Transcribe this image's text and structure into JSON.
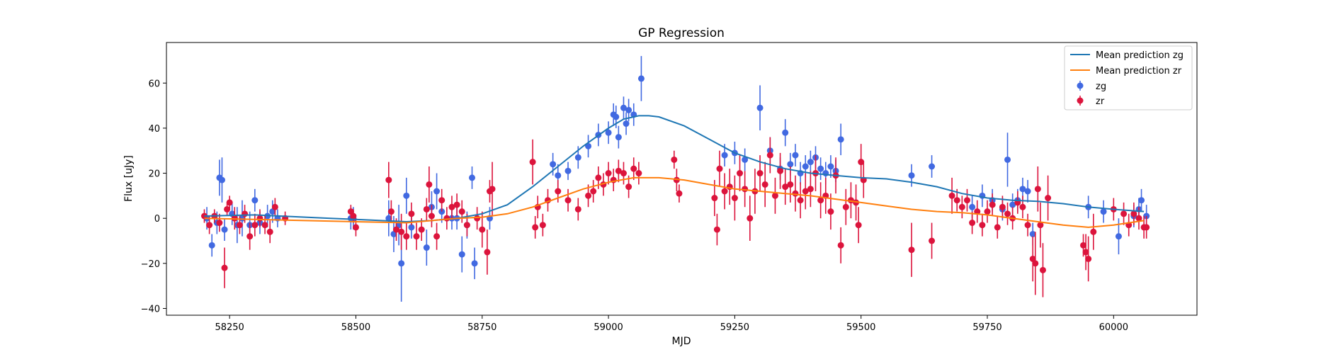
{
  "chart_data": {
    "type": "scatter",
    "title": "GP Regression",
    "xlabel": "MJD",
    "ylabel": "Flux [uJy]",
    "xlim": [
      58125,
      60165
    ],
    "ylim": [
      -43,
      78
    ],
    "x_ticks": [
      58250,
      58500,
      58750,
      59000,
      59250,
      59500,
      59750,
      60000
    ],
    "y_ticks": [
      -40,
      -20,
      0,
      20,
      40,
      60
    ],
    "grid": false,
    "legend_position": "top-right",
    "legend": [
      "Mean prediction zg",
      "Mean prediction zr",
      "zg",
      "zr"
    ],
    "series": [
      {
        "name": "Mean prediction zg",
        "kind": "line",
        "color": "#1f77b4",
        "x": [
          58200,
          58300,
          58350,
          58400,
          58450,
          58500,
          58550,
          58600,
          58650,
          58700,
          58750,
          58800,
          58850,
          58900,
          58950,
          59000,
          59030,
          59060,
          59080,
          59100,
          59150,
          59200,
          59250,
          59300,
          59350,
          59400,
          59450,
          59500,
          59550,
          59600,
          59650,
          59700,
          59750,
          59800,
          59850,
          59900,
          59950,
          60000,
          60060
        ],
        "y": [
          1,
          1.5,
          1,
          0.5,
          0,
          -0.5,
          -1,
          -1.5,
          -1,
          0,
          2,
          6,
          14,
          23,
          32,
          40,
          44,
          45.5,
          45.5,
          45,
          41,
          35,
          29,
          25,
          22,
          20,
          19,
          18,
          17.5,
          16,
          14,
          11,
          9,
          8,
          7.5,
          6.5,
          5,
          4,
          3
        ]
      },
      {
        "name": "Mean prediction zr",
        "kind": "line",
        "color": "#ff7f0e",
        "x": [
          58200,
          58300,
          58400,
          58500,
          58600,
          58650,
          58700,
          58750,
          58800,
          58850,
          58900,
          58950,
          59000,
          59050,
          59100,
          59150,
          59200,
          59250,
          59300,
          59350,
          59400,
          59450,
          59500,
          59550,
          59600,
          59650,
          59700,
          59750,
          59800,
          59850,
          59900,
          59950,
          60000,
          60060
        ],
        "y": [
          0,
          -0.5,
          -1,
          -1.5,
          -2,
          -1,
          0,
          0.5,
          2,
          5,
          9,
          13,
          16,
          18,
          18,
          17,
          15,
          13,
          12,
          11,
          10,
          8.5,
          7,
          5.5,
          4,
          3,
          2.5,
          1.5,
          0,
          -1.5,
          -3,
          -4,
          -3,
          -1
        ]
      },
      {
        "name": "zg",
        "kind": "errorbar",
        "color": "#4169e1",
        "x": [
          58205,
          58215,
          58225,
          58230,
          58235,
          58240,
          58255,
          58265,
          58275,
          58290,
          58300,
          58310,
          58325,
          58335,
          58345,
          58490,
          58495,
          58565,
          58575,
          58585,
          58590,
          58600,
          58610,
          58640,
          58650,
          58660,
          58670,
          58690,
          58700,
          58710,
          58720,
          58730,
          58735,
          58765,
          58890,
          58900,
          58920,
          58940,
          58960,
          58980,
          59000,
          59010,
          59015,
          59020,
          59030,
          59035,
          59040,
          59050,
          59065,
          59230,
          59250,
          59270,
          59300,
          59320,
          59340,
          59350,
          59360,
          59370,
          59380,
          59390,
          59400,
          59410,
          59420,
          59430,
          59440,
          59450,
          59460,
          59600,
          59640,
          59720,
          59740,
          59760,
          59780,
          59790,
          59800,
          59810,
          59820,
          59830,
          59840,
          59950,
          59980,
          60010,
          60040,
          60050,
          60055,
          60065
        ],
        "y": [
          0,
          -12,
          -2,
          18,
          17,
          -5,
          2,
          -3,
          0,
          -3,
          8,
          -2,
          1,
          3,
          0,
          0,
          0,
          0,
          -7,
          -3,
          -20,
          10,
          -4,
          -13,
          5,
          12,
          3,
          0,
          0,
          -16,
          -3,
          18,
          -20,
          0,
          24,
          19,
          21,
          27,
          32,
          37,
          38,
          46,
          45,
          36,
          49,
          42,
          48,
          46,
          62,
          28,
          29,
          26,
          49,
          30,
          22,
          38,
          24,
          28,
          20,
          23,
          25,
          27,
          22,
          20,
          23,
          21,
          35,
          19,
          23,
          5,
          10,
          8,
          4,
          26,
          6,
          8,
          13,
          12,
          -7,
          5,
          3,
          -8,
          1,
          4,
          8,
          1
        ],
        "err": [
          5,
          5,
          5,
          8,
          10,
          5,
          5,
          8,
          8,
          6,
          5,
          5,
          5,
          5,
          4,
          5,
          5,
          8,
          8,
          9,
          17,
          8,
          5,
          8,
          7,
          8,
          5,
          5,
          5,
          8,
          6,
          5,
          7,
          5,
          5,
          5,
          4,
          5,
          5,
          5,
          5,
          5,
          5,
          5,
          5,
          5,
          5,
          5,
          10,
          5,
          5,
          5,
          10,
          6,
          5,
          6,
          5,
          5,
          5,
          5,
          5,
          5,
          5,
          5,
          5,
          5,
          7,
          5,
          5,
          5,
          5,
          5,
          5,
          12,
          5,
          5,
          5,
          5,
          5,
          5,
          5,
          8,
          5,
          5,
          5,
          5
        ]
      },
      {
        "name": "zr",
        "kind": "errorbar",
        "color": "#dc143c",
        "x": [
          58200,
          58210,
          58220,
          58230,
          58240,
          58245,
          58250,
          58260,
          58270,
          58280,
          58290,
          58300,
          58310,
          58320,
          58330,
          58340,
          58360,
          58490,
          58495,
          58500,
          58565,
          58570,
          58580,
          58590,
          58600,
          58610,
          58620,
          58630,
          58640,
          58645,
          58650,
          58660,
          58670,
          58680,
          58690,
          58700,
          58710,
          58720,
          58740,
          58750,
          58760,
          58765,
          58770,
          58850,
          58855,
          58860,
          58870,
          58880,
          58900,
          58920,
          58940,
          58960,
          58970,
          58980,
          58990,
          59000,
          59010,
          59020,
          59030,
          59040,
          59050,
          59060,
          59130,
          59135,
          59140,
          59210,
          59215,
          59220,
          59230,
          59240,
          59250,
          59260,
          59270,
          59280,
          59290,
          59300,
          59310,
          59320,
          59330,
          59340,
          59350,
          59360,
          59370,
          59380,
          59390,
          59400,
          59410,
          59420,
          59430,
          59440,
          59450,
          59460,
          59470,
          59480,
          59490,
          59495,
          59500,
          59505,
          59600,
          59640,
          59680,
          59690,
          59700,
          59710,
          59720,
          59730,
          59740,
          59750,
          59760,
          59770,
          59780,
          59790,
          59800,
          59810,
          59820,
          59830,
          59840,
          59845,
          59850,
          59855,
          59860,
          59870,
          59940,
          59945,
          59950,
          59960,
          60000,
          60020,
          60030,
          60040,
          60050,
          60060,
          60065
        ],
        "y": [
          1,
          -3,
          1,
          -2,
          -22,
          4,
          7,
          0,
          -3,
          2,
          -8,
          -3,
          0,
          -3,
          -6,
          5,
          0,
          3,
          1,
          -4,
          17,
          3,
          -5,
          -6,
          -8,
          2,
          -8,
          -5,
          4,
          15,
          1,
          -8,
          8,
          0,
          5,
          6,
          3,
          -3,
          0,
          -5,
          -15,
          12,
          13,
          25,
          -4,
          5,
          -3,
          8,
          12,
          8,
          4,
          10,
          12,
          18,
          15,
          20,
          17,
          21,
          20,
          14,
          22,
          20,
          26,
          17,
          11,
          9,
          -5,
          22,
          12,
          14,
          9,
          20,
          13,
          0,
          12,
          20,
          15,
          28,
          10,
          21,
          14,
          15,
          11,
          8,
          12,
          13,
          20,
          8,
          10,
          3,
          19,
          -12,
          5,
          8,
          7,
          -3,
          25,
          17,
          -14,
          -10,
          10,
          8,
          5,
          8,
          -2,
          3,
          -3,
          3,
          6,
          -4,
          5,
          2,
          0,
          7,
          5,
          -3,
          -18,
          -20,
          13,
          -3,
          -23,
          9,
          -12,
          -15,
          -18,
          -6,
          4,
          2,
          -3,
          2,
          0,
          -4,
          -4
        ],
        "err": [
          3,
          4,
          3,
          4,
          9,
          3,
          3,
          5,
          4,
          4,
          6,
          5,
          4,
          4,
          5,
          4,
          3,
          3,
          3,
          4,
          8,
          5,
          5,
          8,
          6,
          5,
          6,
          5,
          5,
          8,
          5,
          6,
          5,
          5,
          5,
          5,
          5,
          5,
          5,
          8,
          10,
          5,
          12,
          10,
          5,
          5,
          5,
          5,
          5,
          5,
          5,
          5,
          5,
          5,
          5,
          5,
          5,
          5,
          5,
          5,
          5,
          5,
          4,
          5,
          4,
          8,
          7,
          8,
          8,
          8,
          10,
          8,
          8,
          10,
          10,
          8,
          10,
          8,
          8,
          8,
          8,
          8,
          8,
          8,
          8,
          8,
          8,
          8,
          8,
          8,
          8,
          8,
          8,
          8,
          8,
          8,
          8,
          8,
          12,
          8,
          8,
          5,
          5,
          5,
          5,
          5,
          5,
          5,
          5,
          5,
          5,
          5,
          5,
          5,
          5,
          5,
          10,
          14,
          10,
          10,
          12,
          10,
          5,
          8,
          10,
          8,
          5,
          5,
          5,
          5,
          5,
          5,
          5
        ]
      }
    ]
  }
}
